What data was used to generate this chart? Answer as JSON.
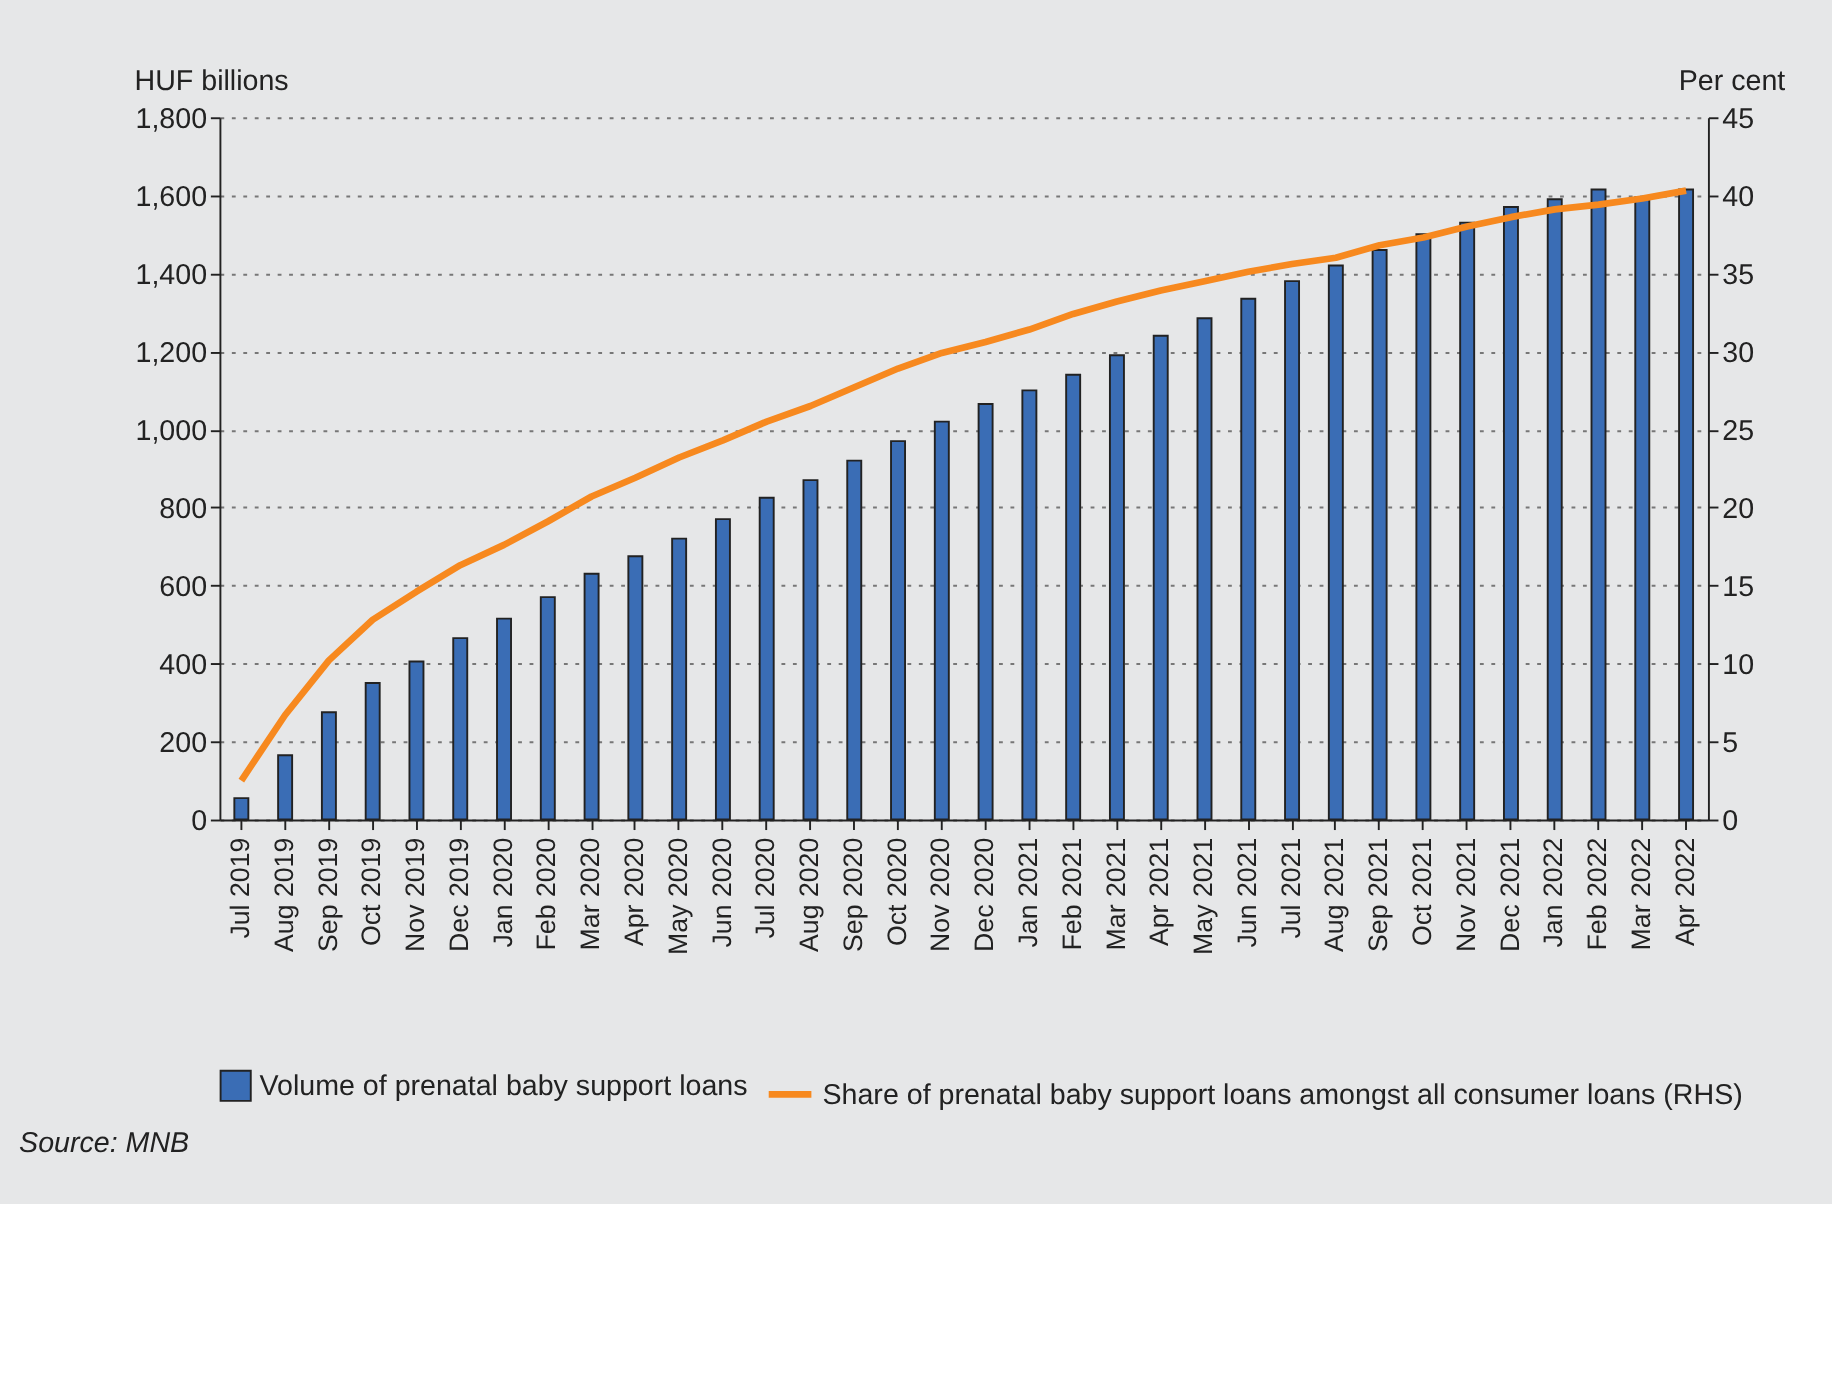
{
  "chart_data": {
    "type": "bar",
    "categories": [
      "Jul 2019",
      "Aug 2019",
      "Sep 2019",
      "Oct 2019",
      "Nov 2019",
      "Dec 2019",
      "Jan 2020",
      "Feb 2020",
      "Mar 2020",
      "Apr 2020",
      "May 2020",
      "Jun 2020",
      "Jul 2020",
      "Aug 2020",
      "Sep 2020",
      "Oct 2020",
      "Nov 2020",
      "Dec 2020",
      "Jan 2021",
      "Feb 2021",
      "Mar 2021",
      "Apr 2021",
      "May 2021",
      "Jun 2021",
      "Jul 2021",
      "Aug 2021",
      "Sep 2021",
      "Oct 2021",
      "Nov 2021",
      "Dec 2021",
      "Jan 2022",
      "Feb 2022",
      "Mar 2022",
      "Apr 2022"
    ],
    "series": [
      {
        "name": "Volume of prenatal baby support loans",
        "color": "#3a6db5",
        "values": [
          55,
          165,
          275,
          350,
          405,
          465,
          515,
          570,
          630,
          675,
          720,
          770,
          825,
          870,
          920,
          970,
          1020,
          1065,
          1100,
          1140,
          1190,
          1240,
          1285,
          1335,
          1380,
          1420,
          1460,
          1500,
          1530,
          1570,
          1590,
          1615,
          1595,
          1615
        ]
      },
      {
        "name": "Share of prenatal baby support loans amongst all consumer loans (RHS)",
        "type": "line",
        "axis": "y2",
        "color": "#f7891f",
        "values": [
          2.5,
          6.7,
          10.2,
          12.8,
          14.6,
          16.3,
          17.6,
          19.1,
          20.7,
          21.9,
          23.2,
          24.3,
          25.5,
          26.5,
          27.7,
          28.9,
          29.9,
          30.6,
          31.4,
          32.4,
          33.2,
          33.9,
          34.5,
          35.1,
          35.6,
          36.0,
          36.8,
          37.3,
          38.0,
          38.6,
          39.1,
          39.4,
          39.8,
          40.3
        ]
      }
    ],
    "ylabel": "HUF billions",
    "y2label": "Per cent",
    "ylim": [
      0,
      1800
    ],
    "yticks": [
      0,
      200,
      400,
      600,
      800,
      {
        "value": 1000,
        "label": "1,000"
      },
      {
        "value": 1200,
        "label": "1,200"
      },
      {
        "value": 1400,
        "label": "1,400"
      },
      {
        "value": 1600,
        "label": "1,600"
      },
      {
        "value": 1800,
        "label": "1,800"
      }
    ],
    "y2lim": [
      0,
      45
    ],
    "y2ticks": [
      0,
      5,
      10,
      15,
      20,
      25,
      30,
      35,
      40,
      45
    ],
    "grid": "y",
    "legend": "bottom",
    "marker": "none",
    "line_style": "solid",
    "annotations": [
      "Source: MNB"
    ]
  }
}
